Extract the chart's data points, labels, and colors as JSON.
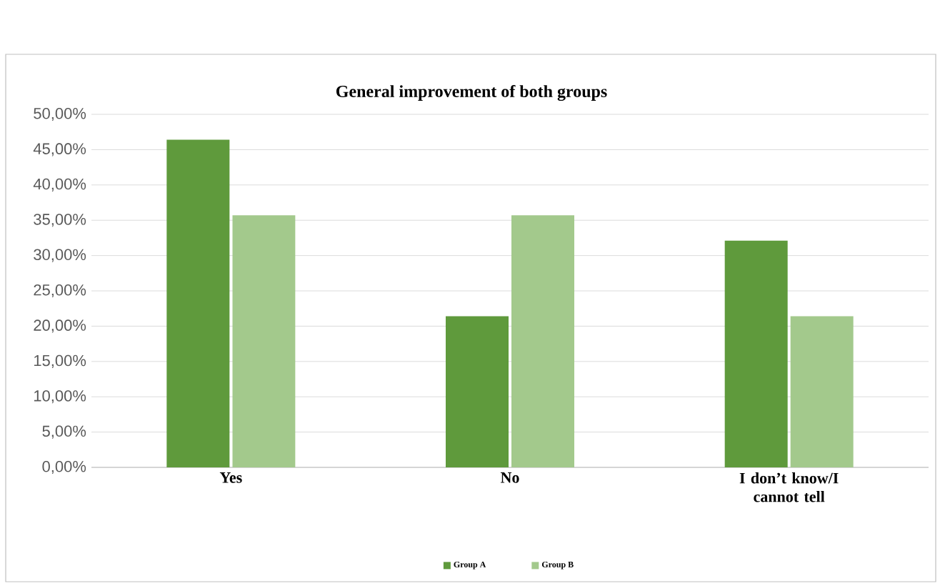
{
  "chart_data": {
    "type": "bar",
    "title": "General improvement of both groups",
    "categories": [
      "Yes",
      "No",
      "I don’t know/I cannot tell"
    ],
    "series": [
      {
        "name": "Group A",
        "color": "#5f9a3c",
        "values": [
          46.4,
          21.4,
          32.1
        ]
      },
      {
        "name": "Group B",
        "color": "#a3c98c",
        "values": [
          35.7,
          35.7,
          21.4
        ]
      }
    ],
    "ylim": [
      0,
      50
    ],
    "yticks": [
      {
        "value": 0,
        "label": "0,00%"
      },
      {
        "value": 5,
        "label": "5,00%"
      },
      {
        "value": 10,
        "label": "10,00%"
      },
      {
        "value": 15,
        "label": "15,00%"
      },
      {
        "value": 20,
        "label": "20,00%"
      },
      {
        "value": 25,
        "label": "25,00%"
      },
      {
        "value": 30,
        "label": "30,00%"
      },
      {
        "value": 35,
        "label": "35,00%"
      },
      {
        "value": 40,
        "label": "40,00%"
      },
      {
        "value": 45,
        "label": "45,00%"
      },
      {
        "value": 50,
        "label": "50,00%"
      }
    ],
    "grid": "y",
    "legend": "bottom"
  }
}
